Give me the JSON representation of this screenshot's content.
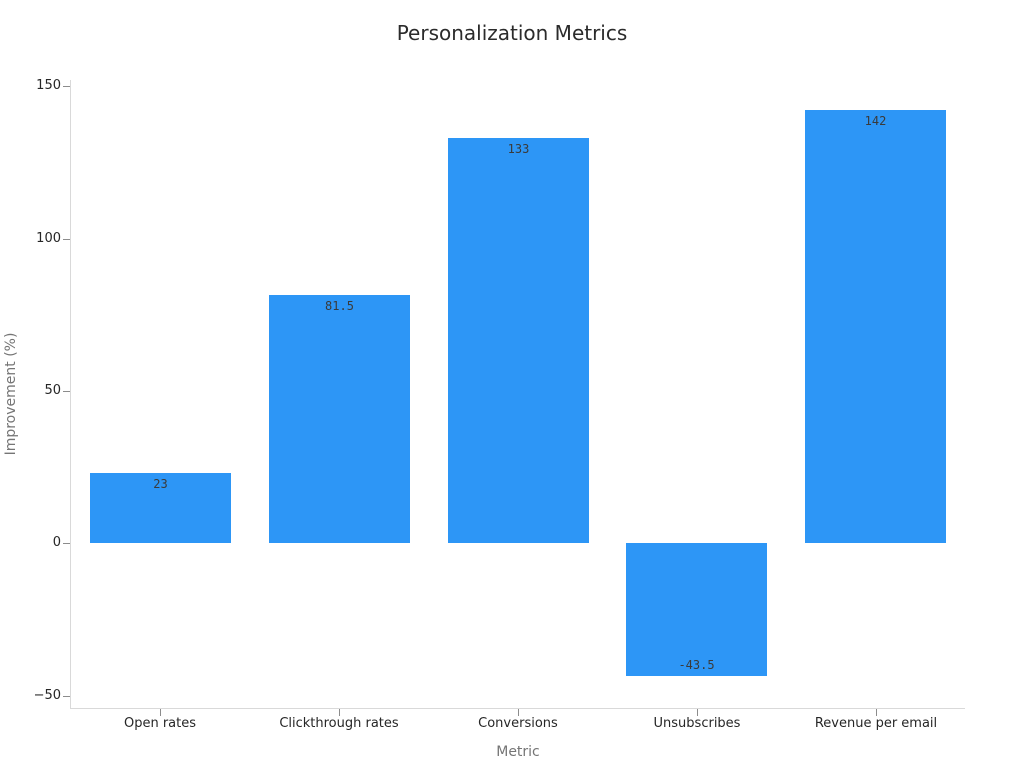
{
  "chart_data": {
    "type": "bar",
    "title": "Personalization Metrics",
    "xlabel": "Metric",
    "ylabel": "Improvement (%)",
    "categories": [
      "Open rates",
      "Clickthrough rates",
      "Conversions",
      "Unsubscribes",
      "Revenue per email"
    ],
    "values": [
      23,
      81.5,
      133,
      -43.5,
      142
    ],
    "value_labels": [
      "23",
      "81.5",
      "133",
      "-43.5",
      "142"
    ],
    "yticks": [
      150,
      100,
      50,
      0,
      -50
    ],
    "ytick_labels": [
      "150",
      "100",
      "50",
      "0",
      "−50"
    ],
    "ylim": [
      -54,
      152
    ],
    "bar_color": "#2D96F6",
    "grid": false,
    "legend": null,
    "colors": {
      "bar": "#2D96F6",
      "spine": "#d9d9d9",
      "tick_mark": "#8c8c8c",
      "tick_label": "#262626",
      "axis_label": "#757575",
      "title": "#2b2b2b",
      "value_label": "#3a3a3a",
      "background": "#ffffff"
    }
  }
}
